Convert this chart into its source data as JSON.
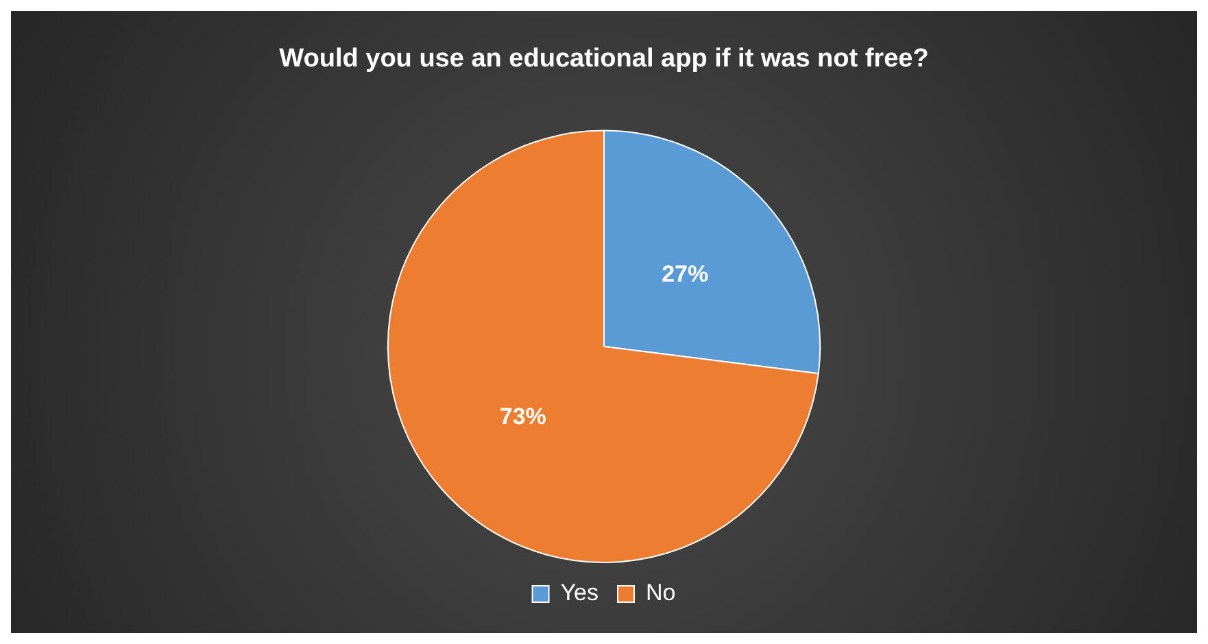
{
  "chart_data": {
    "type": "pie",
    "title": "Would you use an educational app if it was not free?",
    "categories": [
      "Yes",
      "No"
    ],
    "values": [
      27,
      73
    ],
    "colors": [
      "#5b9bd5",
      "#ed7d31"
    ],
    "value_labels": [
      "27%",
      "73%"
    ],
    "legend": "bottom"
  }
}
